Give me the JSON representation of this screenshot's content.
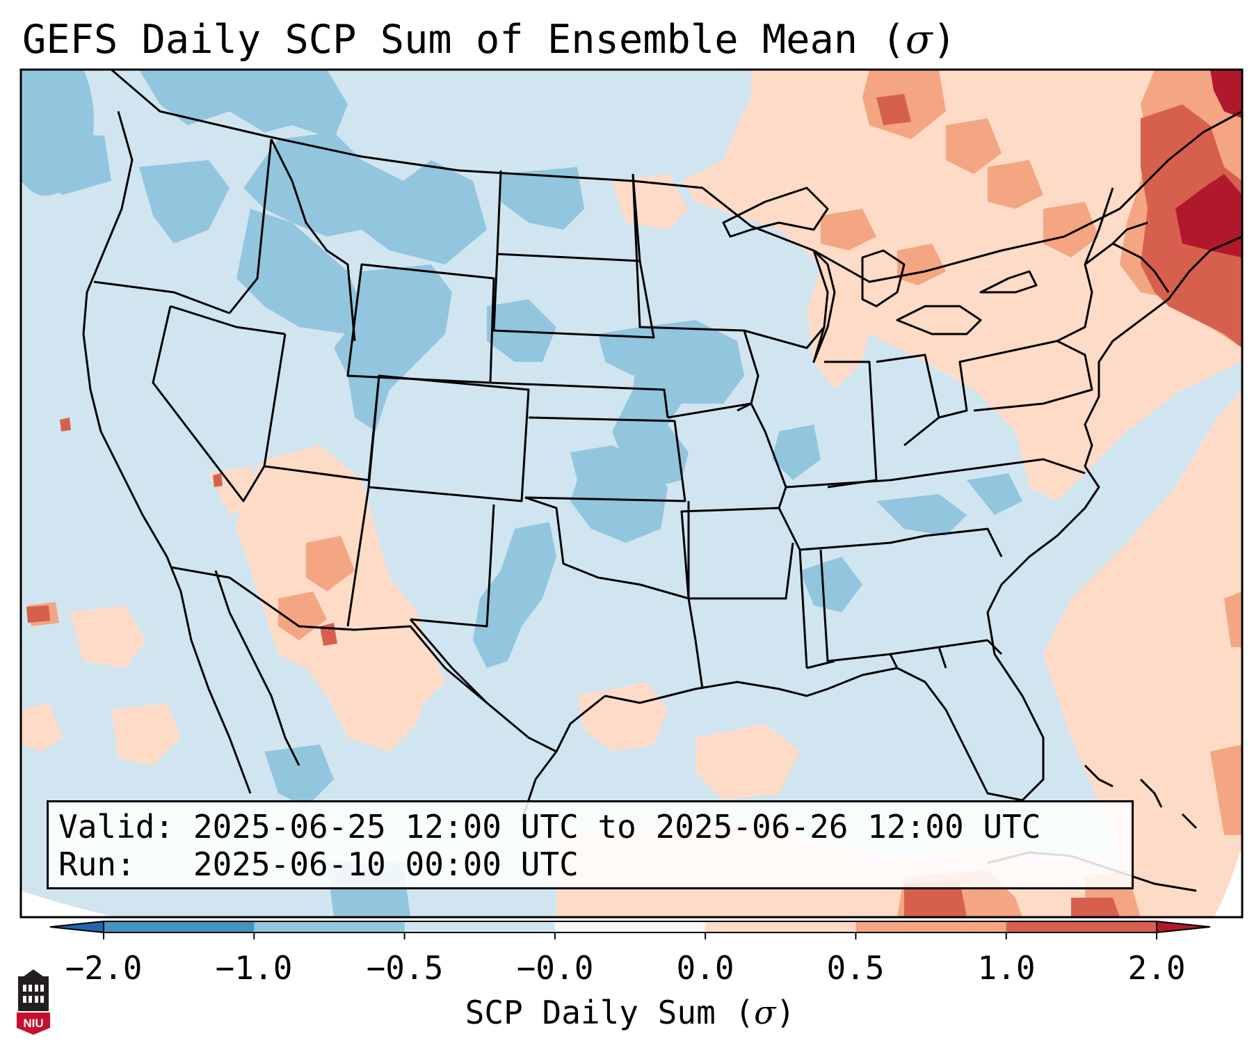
{
  "title": {
    "prefix": "GEFS Daily SCP Sum of Ensemble Mean (",
    "sigma": "σ",
    "suffix": ")"
  },
  "info": {
    "valid_label": "Valid:",
    "valid_value": "2025-06-25 12:00 UTC to 2025-06-26 12:00 UTC",
    "run_label": "Run:",
    "run_value": "2025-06-10 00:00 UTC"
  },
  "colorbar": {
    "label_prefix": "SCP Daily Sum (",
    "label_sigma": "σ",
    "label_suffix": ")",
    "tick_labels": [
      "−2.0",
      "−1.0",
      "−0.5",
      "−0.0",
      "0.0",
      "0.5",
      "1.0",
      "2.0"
    ],
    "bins": [
      {
        "range": "-2.0 to -1.0",
        "color": "#4393c3"
      },
      {
        "range": "-1.0 to -0.5",
        "color": "#92c5de"
      },
      {
        "range": "-0.5 to -0.0",
        "color": "#d1e5f0"
      },
      {
        "range": "-0.0 to 0.0",
        "color": "#f7f7f7"
      },
      {
        "range": "0.0 to 0.5",
        "color": "#fddbc7"
      },
      {
        "range": "0.5 to 1.0",
        "color": "#f4a582"
      },
      {
        "range": "1.0 to 2.0",
        "color": "#d6604d"
      }
    ],
    "extend_low_color": "#2166ac",
    "extend_high_color": "#b2182b"
  },
  "map_colors": {
    "background": "#d1e5f0",
    "weak_negative": "#92c5de",
    "weak_positive": "#fddbc7",
    "moderate_positive": "#f4a582",
    "strong_positive": "#d6604d",
    "extreme_positive": "#b2182b",
    "border": "#000000"
  },
  "logo": {
    "text": "NIU",
    "color": "#c8102e"
  }
}
